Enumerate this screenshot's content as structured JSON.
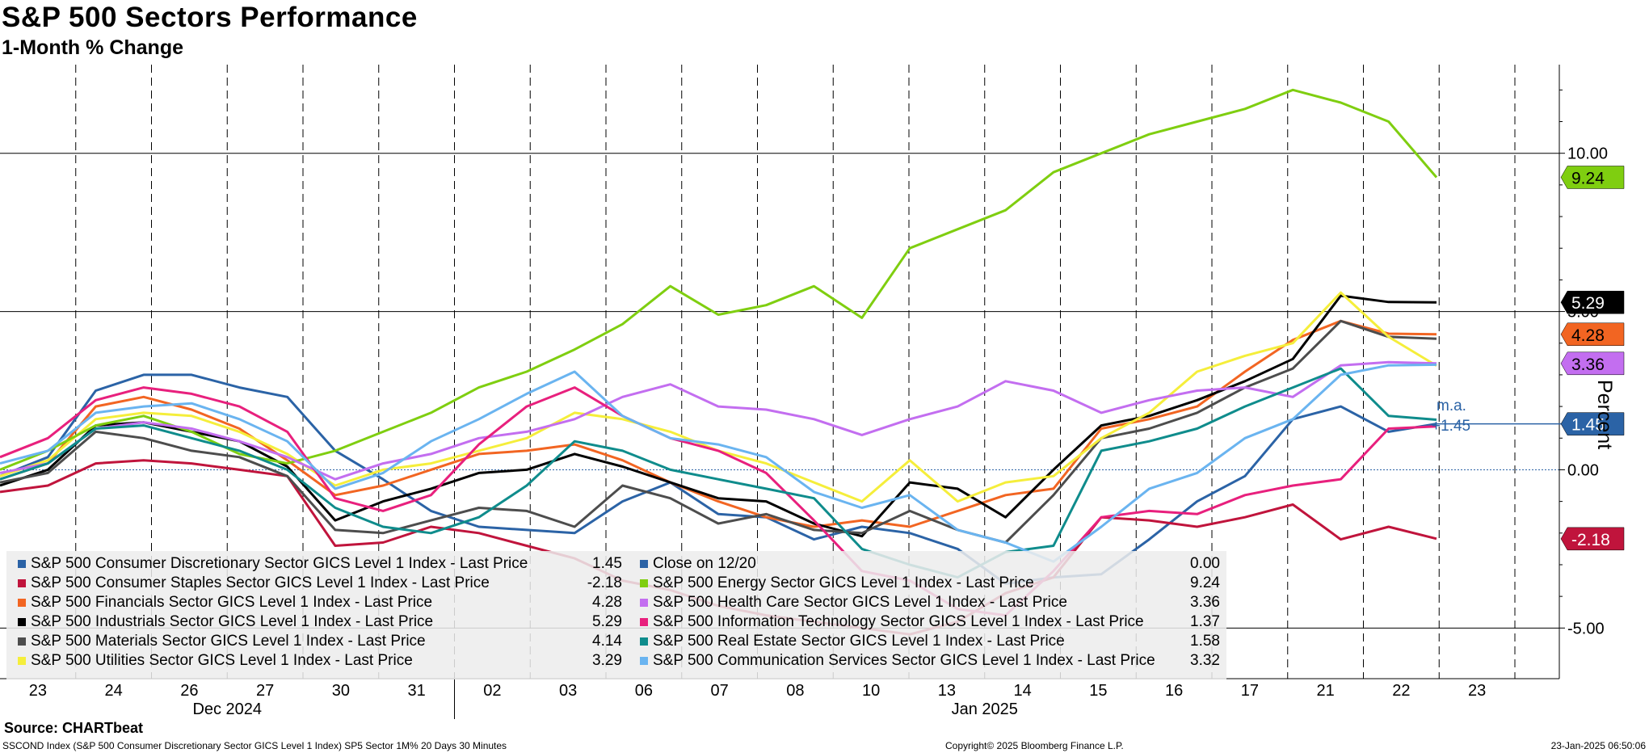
{
  "chart_data": {
    "type": "line",
    "title": "S&P 500 Sectors Performance",
    "subtitle": "1-Month % Change",
    "ylabel": "Percent",
    "ylim": [
      -6.6,
      12.8
    ],
    "y_ticks": [
      {
        "value": 10.0,
        "label": "10.00"
      },
      {
        "value": 5.0,
        "label": "5.00"
      },
      {
        "value": 0.0,
        "label": "0.00"
      },
      {
        "value": -5.0,
        "label": "-5.00"
      }
    ],
    "x_ticks": [
      "23",
      "24",
      "26",
      "27",
      "30",
      "31",
      "02",
      "03",
      "06",
      "07",
      "08",
      "10",
      "13",
      "14",
      "15",
      "16",
      "17",
      "21",
      "22",
      "23"
    ],
    "month_labels": [
      "Dec 2024",
      "Jan 2025"
    ],
    "annotation": {
      "text1": "m.a.",
      "text2": "+1.45",
      "color": "#2b63a6"
    },
    "series": [
      {
        "name": "S&P 500 Consumer Discretionary Sector GICS Level 1 Index - Last Price",
        "last": "1.45",
        "color": "#2b63a6",
        "tag_text_color": "#ffffff",
        "values": [
          -0.2,
          0.4,
          2.5,
          3.0,
          3.0,
          2.6,
          2.3,
          0.6,
          -0.3,
          -1.3,
          -1.8,
          -1.9,
          -2.0,
          -1.0,
          -0.4,
          -1.4,
          -1.5,
          -2.2,
          -1.8,
          -2.0,
          -2.5,
          -3.6,
          -3.4,
          -3.3,
          -2.2,
          -1.0,
          -0.2,
          1.6,
          2.0,
          1.2,
          1.45
        ]
      },
      {
        "name": "S&P 500 Consumer Staples Sector GICS Level 1 Index - Last Price",
        "last": "-2.18",
        "color": "#c0143c",
        "tag_text_color": "#ffffff",
        "values": [
          -0.7,
          -0.5,
          0.2,
          0.3,
          0.2,
          0.0,
          -0.2,
          -2.4,
          -2.3,
          -1.8,
          -2.0,
          -2.4,
          -2.8,
          -3.5,
          -3.8,
          -4.3,
          -4.6,
          -4.8,
          -5.0,
          -5.2,
          -4.8,
          -3.9,
          -3.4,
          -1.5,
          -1.6,
          -1.8,
          -1.5,
          -1.1,
          -2.2,
          -1.8,
          -2.18
        ]
      },
      {
        "name": "S&P 500 Financials Sector GICS Level 1 Index - Last Price",
        "last": "4.28",
        "color": "#f26522",
        "tag_text_color": "#ffffff",
        "values": [
          -0.3,
          0.2,
          2.0,
          2.3,
          1.9,
          1.3,
          0.3,
          -0.8,
          -0.5,
          0.0,
          0.5,
          0.6,
          0.8,
          0.3,
          -0.4,
          -1.0,
          -1.5,
          -1.8,
          -1.6,
          -1.8,
          -1.3,
          -0.8,
          -0.6,
          1.3,
          1.6,
          2.0,
          3.1,
          4.1,
          4.7,
          4.3,
          4.28
        ]
      },
      {
        "name": "S&P 500 Industrials Sector GICS Level 1 Index - Last Price",
        "last": "5.29",
        "color": "#000000",
        "tag_text_color": "#ffffff",
        "values": [
          -0.5,
          0.0,
          1.4,
          1.5,
          1.2,
          0.9,
          0.1,
          -1.6,
          -1.0,
          -0.6,
          -0.1,
          0.0,
          0.5,
          0.1,
          -0.4,
          -0.9,
          -1.0,
          -1.7,
          -2.1,
          -0.4,
          -0.6,
          -1.5,
          0.0,
          1.4,
          1.7,
          2.2,
          2.8,
          3.5,
          5.5,
          5.3,
          5.29
        ]
      },
      {
        "name": "S&P 500 Materials Sector GICS Level 1 Index - Last Price",
        "last": "4.14",
        "color": "#4d4d4d",
        "tag_text_color": "#ffffff",
        "values": [
          -0.4,
          -0.1,
          1.2,
          1.0,
          0.6,
          0.4,
          -0.2,
          -1.9,
          -2.0,
          -1.6,
          -1.2,
          -1.3,
          -1.8,
          -0.5,
          -0.9,
          -1.7,
          -1.4,
          -1.9,
          -2.0,
          -1.3,
          -1.9,
          -2.3,
          -0.8,
          1.0,
          1.3,
          1.8,
          2.6,
          3.2,
          4.7,
          4.2,
          4.14
        ]
      },
      {
        "name": "S&P 500 Utilities Sector GICS Level 1 Index - Last Price",
        "last": "3.29",
        "color": "#f5ee3b",
        "tag_text_color": "#000000",
        "values": [
          -0.2,
          0.3,
          1.6,
          1.8,
          1.7,
          1.2,
          0.5,
          -0.5,
          0.0,
          0.2,
          0.6,
          1.0,
          1.8,
          1.6,
          1.2,
          0.6,
          0.2,
          -0.4,
          -1.0,
          0.3,
          -1.0,
          -0.4,
          -0.2,
          1.0,
          1.8,
          3.1,
          3.6,
          4.0,
          5.6,
          4.2,
          3.29
        ]
      },
      {
        "name": "Close on 12/20",
        "last": "0.00",
        "color": "#2b63a6",
        "tag_text_color": "#ffffff",
        "dashed": true,
        "values": [
          0.0,
          0.0,
          0.0,
          0.0,
          0.0,
          0.0,
          0.0,
          0.0,
          0.0,
          0.0,
          0.0,
          0.0,
          0.0,
          0.0,
          0.0,
          0.0,
          0.0,
          0.0,
          0.0,
          0.0,
          0.0,
          0.0,
          0.0,
          0.0,
          0.0,
          0.0,
          0.0,
          0.0,
          0.0,
          0.0,
          0.0
        ]
      },
      {
        "name": "S&P 500 Energy Sector GICS Level 1 Index - Last Price",
        "last": "9.24",
        "color": "#7fce10",
        "tag_text_color": "#000000",
        "values": [
          0.0,
          0.6,
          1.4,
          1.7,
          1.2,
          0.5,
          0.2,
          0.6,
          1.2,
          1.8,
          2.6,
          3.1,
          3.8,
          4.6,
          5.8,
          4.9,
          5.2,
          5.8,
          4.8,
          7.0,
          7.6,
          8.2,
          9.4,
          10.0,
          10.6,
          11.0,
          11.4,
          12.0,
          11.6,
          11.0,
          9.24
        ]
      },
      {
        "name": "S&P 500 Health Care Sector GICS Level 1 Index - Last Price",
        "last": "3.36",
        "color": "#c36ef0",
        "tag_text_color": "#000000",
        "values": [
          -0.1,
          0.2,
          1.3,
          1.5,
          1.3,
          0.9,
          0.4,
          -0.3,
          0.2,
          0.5,
          1.0,
          1.2,
          1.6,
          2.3,
          2.7,
          2.0,
          1.9,
          1.6,
          1.1,
          1.6,
          2.0,
          2.8,
          2.5,
          1.8,
          2.2,
          2.5,
          2.6,
          2.3,
          3.3,
          3.4,
          3.36
        ]
      },
      {
        "name": "S&P 500 Information Technology Sector GICS Level 1 Index - Last Price",
        "last": "1.37",
        "color": "#e8207d",
        "tag_text_color": "#ffffff",
        "values": [
          0.4,
          1.0,
          2.2,
          2.6,
          2.4,
          2.0,
          1.2,
          -0.9,
          -1.3,
          -0.8,
          0.8,
          2.0,
          2.6,
          1.7,
          1.0,
          0.6,
          -0.1,
          -1.6,
          -3.2,
          -3.5,
          -4.4,
          -4.6,
          -3.2,
          -1.5,
          -1.3,
          -1.4,
          -0.8,
          -0.5,
          -0.3,
          1.3,
          1.37
        ]
      },
      {
        "name": "S&P 500 Real Estate Sector GICS Level 1 Index - Last Price",
        "last": "1.58",
        "color": "#0f8c8c",
        "tag_text_color": "#ffffff",
        "values": [
          -0.3,
          0.2,
          1.3,
          1.4,
          1.0,
          0.6,
          0.0,
          -1.2,
          -1.8,
          -2.0,
          -1.5,
          -0.5,
          0.9,
          0.6,
          0.0,
          -0.3,
          -0.6,
          -0.9,
          -2.5,
          -3.0,
          -3.4,
          -2.6,
          -2.4,
          0.6,
          0.9,
          1.3,
          2.0,
          2.6,
          3.2,
          1.7,
          1.58
        ]
      },
      {
        "name": "S&P 500 Communication Services Sector GICS Level 1 Index - Last Price",
        "last": "3.32",
        "color": "#6ab4f0",
        "tag_text_color": "#000000",
        "values": [
          0.2,
          0.6,
          1.8,
          2.0,
          2.1,
          1.6,
          0.9,
          -0.6,
          -0.1,
          0.9,
          1.6,
          2.4,
          3.1,
          1.7,
          1.0,
          0.8,
          0.4,
          -0.7,
          -1.2,
          -0.8,
          -1.9,
          -2.3,
          -2.9,
          -1.8,
          -0.6,
          -0.1,
          1.0,
          1.6,
          3.0,
          3.3,
          3.32
        ]
      }
    ],
    "tags": [
      {
        "value": "9.24",
        "y": 9.24,
        "color": "#7fce10",
        "text": "#000000"
      },
      {
        "value": "5.29",
        "y": 5.29,
        "color": "#000000",
        "text": "#ffffff"
      },
      {
        "value": "4.28",
        "y": 4.28,
        "color": "#f26522",
        "text": "#000000"
      },
      {
        "value": "3.36",
        "y": 3.36,
        "color": "#c36ef0",
        "text": "#000000"
      },
      {
        "value": "1.45",
        "y": 1.45,
        "color": "#2b63a6",
        "text": "#ffffff"
      },
      {
        "value": "-2.18",
        "y": -2.18,
        "color": "#c0143c",
        "text": "#ffffff"
      }
    ]
  },
  "legend": {
    "left": [
      {
        "label": "S&P 500 Consumer Discretionary Sector GICS Level 1 Index - Last Price",
        "value": "1.45",
        "color": "#2b63a6"
      },
      {
        "label": "S&P 500 Consumer Staples Sector GICS Level 1 Index - Last Price",
        "value": "-2.18",
        "color": "#c0143c"
      },
      {
        "label": "S&P 500 Financials Sector GICS Level 1 Index - Last Price",
        "value": "4.28",
        "color": "#f26522"
      },
      {
        "label": "S&P 500 Industrials Sector GICS Level 1 Index - Last Price",
        "value": "5.29",
        "color": "#000000"
      },
      {
        "label": "S&P 500 Materials Sector GICS Level 1 Index - Last Price",
        "value": "4.14",
        "color": "#4d4d4d"
      },
      {
        "label": "S&P 500 Utilities Sector GICS Level 1 Index - Last Price",
        "value": "3.29",
        "color": "#f5ee3b"
      }
    ],
    "right": [
      {
        "label": "Close on 12/20",
        "value": "0.00",
        "color": "#2b63a6"
      },
      {
        "label": "S&P 500 Energy Sector GICS Level 1 Index - Last Price",
        "value": "9.24",
        "color": "#7fce10"
      },
      {
        "label": "S&P 500 Health Care Sector GICS Level 1 Index - Last Price",
        "value": "3.36",
        "color": "#c36ef0"
      },
      {
        "label": "S&P 500 Information Technology Sector GICS Level 1 Index - Last Price",
        "value": "1.37",
        "color": "#e8207d"
      },
      {
        "label": "S&P 500 Real Estate Sector GICS Level 1 Index - Last Price",
        "value": "1.58",
        "color": "#0f8c8c"
      },
      {
        "label": "S&P 500 Communication Services Sector GICS Level 1 Index - Last Price",
        "value": "3.32",
        "color": "#6ab4f0"
      }
    ]
  },
  "source": "Source: CHARTbeat",
  "footer": {
    "left": "SSCOND Index (S&P 500 Consumer Discretionary Sector GICS Level 1 Index) SP5 Sector 1M% 20 Days 30 Minutes",
    "middle": "Copyright© 2025 Bloomberg Finance L.P.",
    "right": "23-Jan-2025 06:50:06"
  }
}
